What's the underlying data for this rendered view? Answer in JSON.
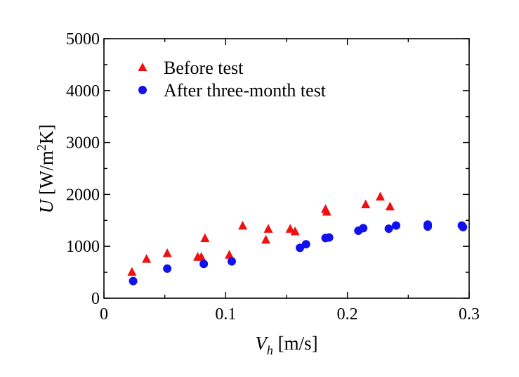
{
  "chart_data": {
    "type": "scatter",
    "xlabel": {
      "var": "V",
      "sub": "h",
      "unit": " [m/s]"
    },
    "ylabel": {
      "var": "U",
      "unit_a": " [W/m",
      "sup": "2",
      "unit_b": "K]"
    },
    "xlim": [
      0,
      0.3
    ],
    "ylim": [
      0,
      5000
    ],
    "xticks": [
      "0",
      "0.1",
      "0.2",
      "0.3"
    ],
    "yticks": [
      "0",
      "1000",
      "2000",
      "3000",
      "4000",
      "5000"
    ],
    "xtick_values": [
      0,
      0.1,
      0.2,
      0.3
    ],
    "ytick_values": [
      0,
      1000,
      2000,
      3000,
      4000,
      5000
    ],
    "grid": false,
    "legend_position": "top-left",
    "series": [
      {
        "name": "Before test",
        "marker": "triangle",
        "color": "#ee1111",
        "points": [
          [
            0.023,
            500
          ],
          [
            0.035,
            750
          ],
          [
            0.052,
            860
          ],
          [
            0.077,
            790
          ],
          [
            0.08,
            790
          ],
          [
            0.083,
            1150
          ],
          [
            0.103,
            830
          ],
          [
            0.114,
            1390
          ],
          [
            0.133,
            1120
          ],
          [
            0.135,
            1330
          ],
          [
            0.153,
            1330
          ],
          [
            0.157,
            1280
          ],
          [
            0.182,
            1710
          ],
          [
            0.183,
            1660
          ],
          [
            0.215,
            1800
          ],
          [
            0.227,
            1950
          ],
          [
            0.235,
            1760
          ]
        ]
      },
      {
        "name": "After three-month test",
        "marker": "circle",
        "color": "#1111ee",
        "points": [
          [
            0.024,
            330
          ],
          [
            0.052,
            570
          ],
          [
            0.082,
            660
          ],
          [
            0.105,
            710
          ],
          [
            0.161,
            970
          ],
          [
            0.166,
            1040
          ],
          [
            0.182,
            1160
          ],
          [
            0.185,
            1170
          ],
          [
            0.209,
            1300
          ],
          [
            0.213,
            1350
          ],
          [
            0.234,
            1340
          ],
          [
            0.24,
            1400
          ],
          [
            0.266,
            1420
          ],
          [
            0.266,
            1380
          ],
          [
            0.294,
            1400
          ],
          [
            0.295,
            1370
          ]
        ]
      }
    ]
  }
}
